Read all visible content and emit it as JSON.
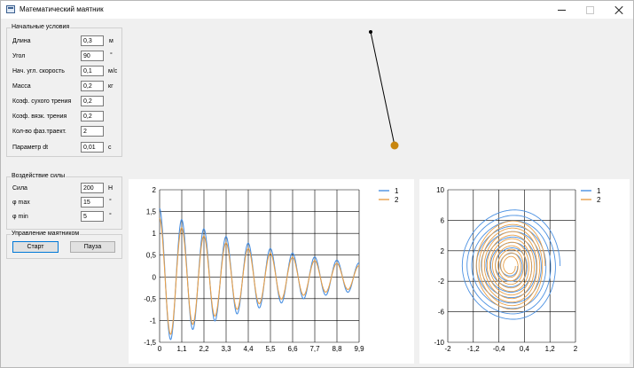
{
  "window": {
    "title": "Математический маятник"
  },
  "initial": {
    "title": "Начальные условия",
    "rows": [
      {
        "label": "Длина",
        "value": "0,3",
        "unit": "м"
      },
      {
        "label": "Угол",
        "value": "90",
        "unit": "°"
      },
      {
        "label": "Нач. угл. скорость",
        "value": "0,1",
        "unit": "м/с"
      },
      {
        "label": "Масса",
        "value": "0,2",
        "unit": "кг"
      },
      {
        "label": "Коэф. сухого трения",
        "value": "0,2",
        "unit": ""
      },
      {
        "label": "Коэф. вязк. трения",
        "value": "0,2",
        "unit": ""
      },
      {
        "label": "Кол-во фаз.траект.",
        "value": "2",
        "unit": ""
      },
      {
        "label": "Параметр dt",
        "value": "0,01",
        "unit": "с"
      }
    ]
  },
  "force": {
    "title": "Воздействие силы",
    "rows": [
      {
        "label": "Сила",
        "value": "200",
        "unit": "Н"
      },
      {
        "label": "φ max",
        "value": "15",
        "unit": "°"
      },
      {
        "label": "φ min",
        "value": "5",
        "unit": "°"
      }
    ]
  },
  "control": {
    "title": "Управление маятником",
    "start_label": "Старт",
    "pause_label": "Пауза"
  },
  "colors": {
    "series1": "#4a90e2",
    "series2": "#e8a04a",
    "bob": "#c8860f"
  },
  "chart_data": [
    {
      "type": "line",
      "title": "",
      "xlabel": "",
      "ylabel": "",
      "xlim": [
        0,
        9.9
      ],
      "ylim": [
        -1.5,
        2
      ],
      "xticks": [
        "0",
        "1,1",
        "2,2",
        "3,3",
        "4,4",
        "5,5",
        "6,6",
        "7,7",
        "8,8",
        "9,9"
      ],
      "yticks": [
        "2",
        "1,5",
        "1",
        "0,5",
        "0",
        "-0,5",
        "-1",
        "-1,5"
      ],
      "grid": true,
      "legend": "top-right",
      "series": [
        {
          "name": "1",
          "amplitude": 1.57,
          "period": 1.1,
          "damping": 0.16
        },
        {
          "name": "2",
          "amplitude": 1.4,
          "period": 1.1,
          "damping": 0.17
        }
      ]
    },
    {
      "type": "line",
      "title": "",
      "xlabel": "",
      "ylabel": "",
      "xlim": [
        -2,
        2
      ],
      "ylim": [
        -10,
        10
      ],
      "xticks": [
        "-2",
        "-1,2",
        "-0,4",
        "0,4",
        "1,2",
        "2"
      ],
      "yticks": [
        "10",
        "6",
        "2",
        "-2",
        "-6",
        "-10"
      ],
      "grid": true,
      "legend": "top-right",
      "series": [
        {
          "name": "1",
          "max_angle": 1.57,
          "max_velocity": 7.5
        },
        {
          "name": "2",
          "max_angle": 1.1,
          "max_velocity": 6.0
        }
      ]
    }
  ]
}
